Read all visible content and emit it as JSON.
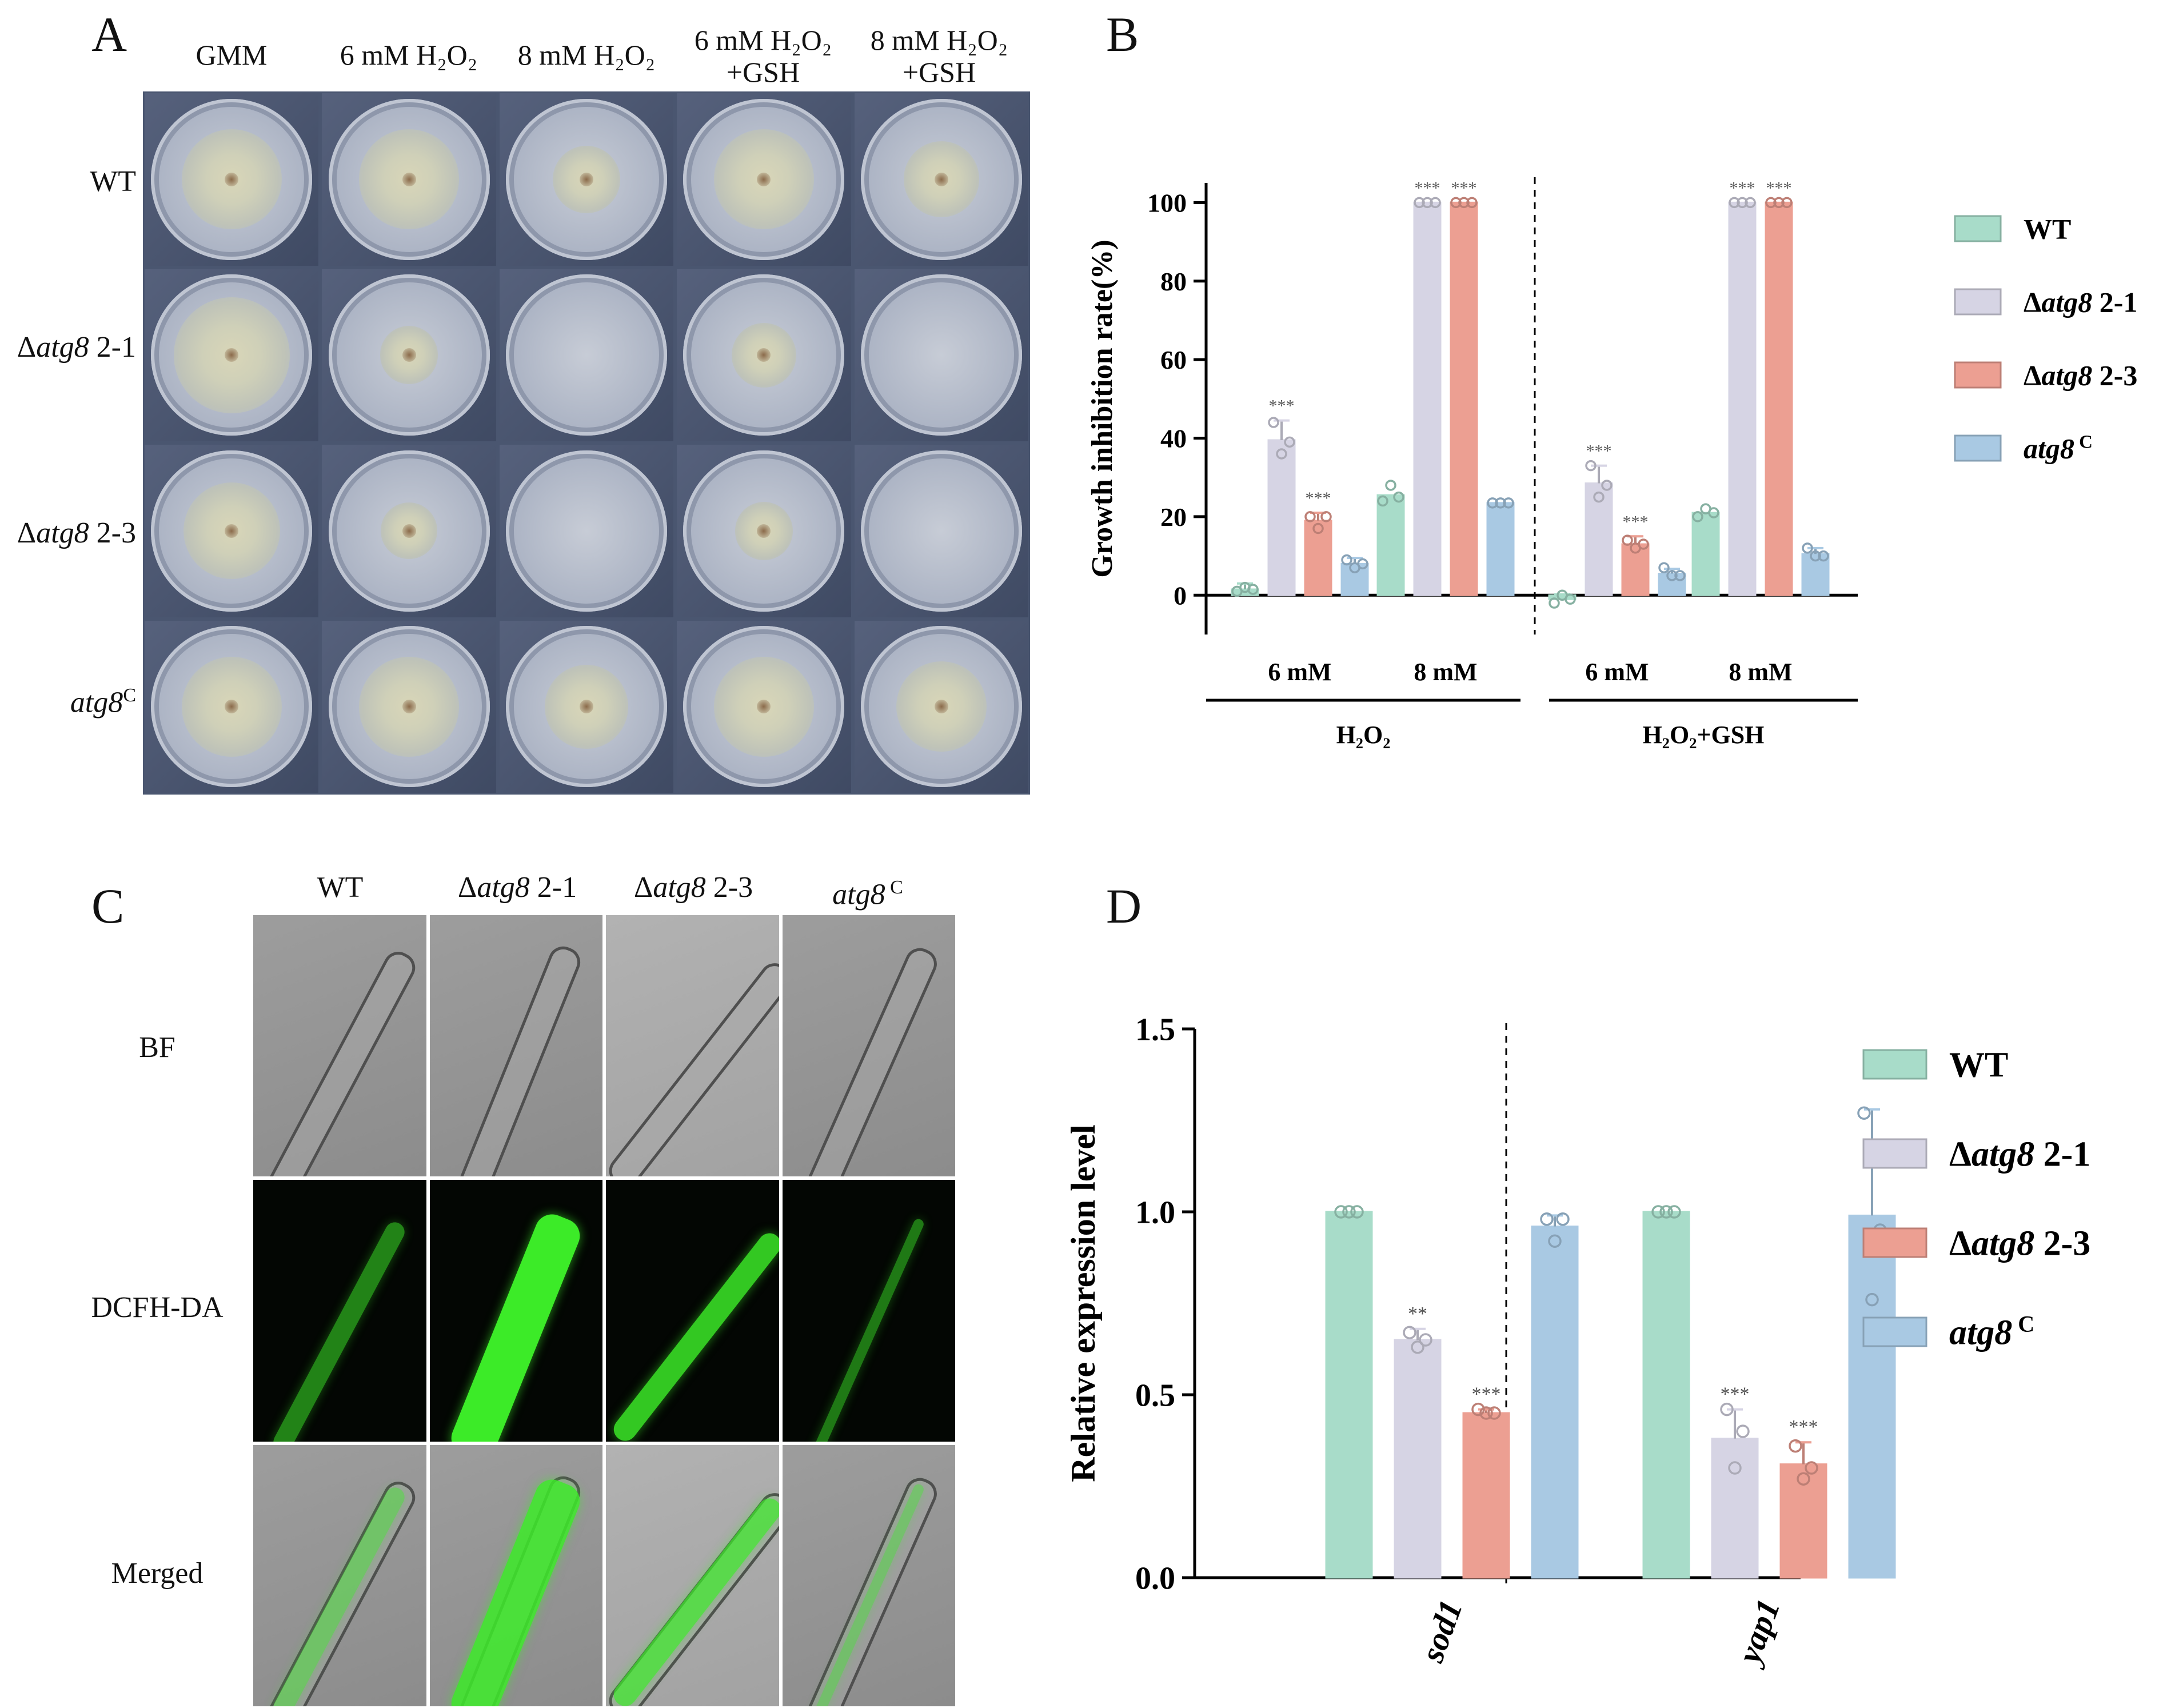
{
  "panels": {
    "A": {
      "letter": "A",
      "columns": [
        {
          "line1": "GMM",
          "line2": ""
        },
        {
          "line1": "6 mM H₂O₂",
          "line2": ""
        },
        {
          "line1": "8 mM H₂O₂",
          "line2": ""
        },
        {
          "line1": "6 mM H₂O₂",
          "line2": "+GSH"
        },
        {
          "line1": "8 mM H₂O₂",
          "line2": "+GSH"
        }
      ],
      "rows": [
        {
          "prefix": "",
          "italic": "WT",
          "suffix": "",
          "sup": "",
          "style": "normal"
        },
        {
          "prefix": "Δ",
          "italic": "atg8",
          "suffix": " 2-1",
          "sup": ""
        },
        {
          "prefix": "Δ",
          "italic": "atg8",
          "suffix": " 2-3",
          "sup": ""
        },
        {
          "prefix": "",
          "italic": "atg8",
          "suffix": "",
          "sup": "C"
        }
      ]
    },
    "B": {
      "letter": "B",
      "chart_data": {
        "type": "bar",
        "ylabel": "Growth inhibition rate(%)",
        "ylim": [
          -10,
          105
        ],
        "yticks": [
          "0",
          "20",
          "40",
          "60",
          "80",
          "100"
        ],
        "ytick_values": [
          0,
          20,
          40,
          60,
          80,
          100
        ],
        "categories": [
          "6 mM",
          "8 mM",
          "6 mM",
          "8 mM"
        ],
        "groups": [
          "H₂O₂",
          "H₂O₂+GSH"
        ],
        "series": [
          {
            "name": "WT",
            "values": [
              1.5,
              25.5,
              -1,
              21
            ],
            "color": "#a8dcc9",
            "stars": [
              "",
              "",
              "",
              ""
            ]
          },
          {
            "name": "Δatg8 2-1",
            "values": [
              39.5,
              100,
              28.5,
              100
            ],
            "color": "#d6d4e4",
            "stars": [
              "***",
              "***",
              "***",
              "***"
            ]
          },
          {
            "name": "Δatg8 2-3",
            "values": [
              19,
              100,
              13,
              100
            ],
            "color": "#ec9f92",
            "stars": [
              "***",
              "***",
              "***",
              "***"
            ]
          },
          {
            "name": "atg8 C",
            "values": [
              8,
              23.5,
              5.5,
              10.5
            ],
            "color": "#a9c9e3",
            "stars": [
              "",
              "",
              "",
              ""
            ]
          }
        ],
        "legend": [
          {
            "prefix": "",
            "italic": "",
            "bold": "WT",
            "sup": ""
          },
          {
            "prefix": "Δ",
            "italic": "atg8",
            "bold": " 2-1",
            "sup": ""
          },
          {
            "prefix": "Δ",
            "italic": "atg8",
            "bold": " 2-3",
            "sup": ""
          },
          {
            "prefix": "",
            "italic": "atg8",
            "bold": "",
            "sup": " C"
          }
        ]
      }
    },
    "C": {
      "letter": "C",
      "columns": [
        {
          "prefix": "",
          "italic": "",
          "plain": "WT",
          "sup": ""
        },
        {
          "prefix": "Δ",
          "italic": "atg8",
          "plain": " 2-1",
          "sup": ""
        },
        {
          "prefix": "Δ",
          "italic": "atg8",
          "plain": " 2-3",
          "sup": ""
        },
        {
          "prefix": "",
          "italic": "atg8",
          "plain": "",
          "sup": " C"
        }
      ],
      "rows": [
        "BF",
        "DCFH-DA",
        "Merged"
      ]
    },
    "D": {
      "letter": "D",
      "chart_data": {
        "type": "bar",
        "ylabel": "Relative expression level",
        "ylim": [
          0,
          1.5
        ],
        "yticks": [
          "0.0",
          "0.5",
          "1.0",
          "1.5"
        ],
        "ytick_values": [
          0,
          0.5,
          1.0,
          1.5
        ],
        "categories": [
          "sod1",
          "yap1"
        ],
        "series": [
          {
            "name": "WT",
            "values": [
              1.0,
              1.0
            ],
            "color": "#a8dcc9",
            "stars": [
              "",
              ""
            ]
          },
          {
            "name": "Δatg8 2-1",
            "values": [
              0.65,
              0.38
            ],
            "color": "#d6d4e4",
            "stars": [
              "**",
              "***"
            ]
          },
          {
            "name": "Δatg8 2-3",
            "values": [
              0.45,
              0.31
            ],
            "color": "#ec9f92",
            "stars": [
              "***",
              "***"
            ]
          },
          {
            "name": "atg8 C",
            "values": [
              0.96,
              0.99
            ],
            "color": "#a9c9e3",
            "stars": [
              "",
              ""
            ]
          }
        ],
        "legend": [
          {
            "prefix": "",
            "italic": "",
            "bold": "WT",
            "sup": ""
          },
          {
            "prefix": "Δ",
            "italic": "atg8",
            "bold": " 2-1",
            "sup": ""
          },
          {
            "prefix": "Δ",
            "italic": "atg8",
            "bold": " 2-3",
            "sup": ""
          },
          {
            "prefix": "",
            "italic": "atg8",
            "bold": "",
            "sup": " C"
          }
        ]
      }
    }
  }
}
